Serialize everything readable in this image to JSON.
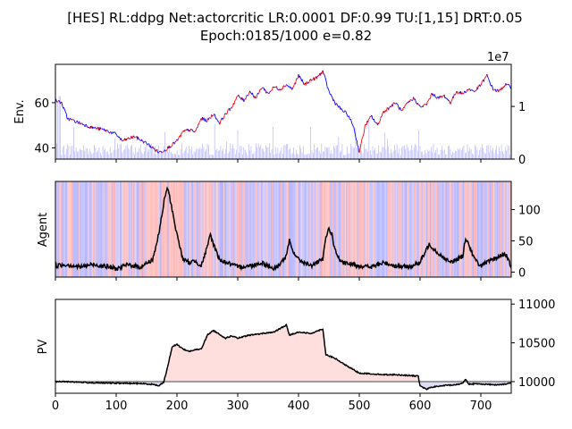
{
  "figure": {
    "title_line1": "[HES] RL:ddpg Net:actorcritic LR:0.0001 DF:0.99 TU:[1,15] DRT:0.05",
    "title_line2": "Epoch:0185/1000 e=0.82"
  },
  "colors": {
    "price_up": "#ff0000",
    "price_down": "#0000ff",
    "volume": "#aaaaff",
    "buy_band": "#ffb4b4",
    "sell_band": "#b4b4ff",
    "agent_line": "#000000",
    "pv_line": "#000000",
    "pv_gain_fill": "#ffdede",
    "pv_loss_fill": "#dedef5",
    "baseline": "#808080"
  },
  "chart_data": [
    {
      "type": "line",
      "panel": "env",
      "ylabel": "Env.",
      "ylim": [
        35,
        77
      ],
      "yticks": [
        40,
        60
      ],
      "y2lim": [
        0,
        18000000
      ],
      "y2ticks": [
        0,
        1
      ],
      "y2_offset_label": "1e7",
      "xlim": [
        0,
        750
      ],
      "price_keypoints": [
        [
          0,
          61
        ],
        [
          10,
          60
        ],
        [
          20,
          53
        ],
        [
          40,
          51
        ],
        [
          60,
          49
        ],
        [
          80,
          48
        ],
        [
          100,
          46
        ],
        [
          110,
          43
        ],
        [
          130,
          45
        ],
        [
          150,
          42
        ],
        [
          160,
          40
        ],
        [
          170,
          38
        ],
        [
          180,
          39
        ],
        [
          200,
          43
        ],
        [
          210,
          47
        ],
        [
          220,
          48
        ],
        [
          230,
          47
        ],
        [
          240,
          53
        ],
        [
          250,
          52
        ],
        [
          260,
          55
        ],
        [
          270,
          51
        ],
        [
          280,
          55
        ],
        [
          290,
          58
        ],
        [
          300,
          63
        ],
        [
          310,
          61
        ],
        [
          320,
          65
        ],
        [
          330,
          62
        ],
        [
          340,
          67
        ],
        [
          350,
          64
        ],
        [
          360,
          67
        ],
        [
          370,
          66
        ],
        [
          380,
          68
        ],
        [
          390,
          66
        ],
        [
          400,
          72
        ],
        [
          410,
          68
        ],
        [
          420,
          70
        ],
        [
          430,
          71
        ],
        [
          440,
          74
        ],
        [
          450,
          65
        ],
        [
          460,
          60
        ],
        [
          470,
          57
        ],
        [
          480,
          55
        ],
        [
          490,
          50
        ],
        [
          500,
          38
        ],
        [
          510,
          50
        ],
        [
          520,
          54
        ],
        [
          530,
          50
        ],
        [
          540,
          56
        ],
        [
          550,
          58
        ],
        [
          560,
          60
        ],
        [
          570,
          56
        ],
        [
          580,
          60
        ],
        [
          590,
          62
        ],
        [
          600,
          58
        ],
        [
          610,
          59
        ],
        [
          620,
          64
        ],
        [
          630,
          62
        ],
        [
          640,
          63
        ],
        [
          650,
          60
        ],
        [
          660,
          65
        ],
        [
          670,
          64
        ],
        [
          680,
          66
        ],
        [
          690,
          65
        ],
        [
          700,
          68
        ],
        [
          710,
          72
        ],
        [
          720,
          66
        ],
        [
          730,
          65
        ],
        [
          740,
          68
        ],
        [
          750,
          67
        ]
      ],
      "volume_level": 2500000
    },
    {
      "type": "line",
      "panel": "agent",
      "ylabel": "Agent",
      "ylim": [
        -8,
        145
      ],
      "y2ticks": [
        0,
        50,
        100
      ],
      "xlim": [
        0,
        750
      ],
      "agent_keypoints": [
        [
          0,
          10
        ],
        [
          20,
          12
        ],
        [
          40,
          8
        ],
        [
          60,
          12
        ],
        [
          80,
          10
        ],
        [
          100,
          5
        ],
        [
          120,
          12
        ],
        [
          140,
          8
        ],
        [
          160,
          20
        ],
        [
          170,
          60
        ],
        [
          180,
          120
        ],
        [
          185,
          135
        ],
        [
          190,
          110
        ],
        [
          200,
          60
        ],
        [
          210,
          20
        ],
        [
          220,
          15
        ],
        [
          230,
          18
        ],
        [
          240,
          10
        ],
        [
          250,
          40
        ],
        [
          255,
          60
        ],
        [
          260,
          45
        ],
        [
          270,
          20
        ],
        [
          290,
          12
        ],
        [
          300,
          8
        ],
        [
          320,
          10
        ],
        [
          340,
          15
        ],
        [
          360,
          5
        ],
        [
          370,
          14
        ],
        [
          380,
          25
        ],
        [
          385,
          50
        ],
        [
          390,
          35
        ],
        [
          400,
          20
        ],
        [
          420,
          10
        ],
        [
          440,
          20
        ],
        [
          445,
          55
        ],
        [
          450,
          70
        ],
        [
          455,
          60
        ],
        [
          460,
          35
        ],
        [
          470,
          15
        ],
        [
          490,
          12
        ],
        [
          500,
          10
        ],
        [
          520,
          8
        ],
        [
          540,
          15
        ],
        [
          560,
          10
        ],
        [
          580,
          8
        ],
        [
          600,
          15
        ],
        [
          610,
          35
        ],
        [
          615,
          45
        ],
        [
          620,
          40
        ],
        [
          630,
          30
        ],
        [
          650,
          15
        ],
        [
          670,
          25
        ],
        [
          675,
          55
        ],
        [
          680,
          45
        ],
        [
          690,
          20
        ],
        [
          700,
          10
        ],
        [
          720,
          20
        ],
        [
          730,
          25
        ],
        [
          740,
          30
        ],
        [
          750,
          8
        ]
      ]
    },
    {
      "type": "area",
      "panel": "pv",
      "ylabel": "PV",
      "baseline": 10000,
      "ylim": [
        9920,
        10110
      ],
      "y2ticks": [
        10000,
        10500,
        11000
      ],
      "xlim": [
        0,
        750
      ],
      "xticks": [
        0,
        100,
        200,
        300,
        400,
        500,
        600,
        700
      ],
      "pv_keypoints": [
        [
          0,
          10000
        ],
        [
          20,
          10000
        ],
        [
          40,
          9992
        ],
        [
          60,
          9985
        ],
        [
          80,
          9982
        ],
        [
          100,
          9980
        ],
        [
          120,
          9978
        ],
        [
          140,
          9975
        ],
        [
          160,
          9965
        ],
        [
          170,
          9948
        ],
        [
          178,
          9990
        ],
        [
          185,
          10200
        ],
        [
          192,
          10450
        ],
        [
          200,
          10480
        ],
        [
          210,
          10420
        ],
        [
          220,
          10390
        ],
        [
          230,
          10410
        ],
        [
          240,
          10420
        ],
        [
          250,
          10600
        ],
        [
          260,
          10660
        ],
        [
          270,
          10610
        ],
        [
          280,
          10560
        ],
        [
          290,
          10590
        ],
        [
          300,
          10560
        ],
        [
          320,
          10600
        ],
        [
          340,
          10620
        ],
        [
          360,
          10640
        ],
        [
          380,
          10730
        ],
        [
          385,
          10600
        ],
        [
          400,
          10640
        ],
        [
          420,
          10620
        ],
        [
          440,
          10680
        ],
        [
          445,
          10350
        ],
        [
          460,
          10300
        ],
        [
          480,
          10200
        ],
        [
          500,
          10110
        ],
        [
          520,
          10100
        ],
        [
          540,
          10090
        ],
        [
          560,
          10090
        ],
        [
          580,
          10080
        ],
        [
          597,
          10070
        ],
        [
          600,
          9950
        ],
        [
          610,
          9900
        ],
        [
          620,
          9930
        ],
        [
          640,
          9950
        ],
        [
          660,
          9960
        ],
        [
          670,
          9980
        ],
        [
          675,
          10030
        ],
        [
          680,
          9970
        ],
        [
          700,
          9970
        ],
        [
          720,
          9960
        ],
        [
          740,
          9965
        ],
        [
          750,
          9985
        ]
      ]
    }
  ]
}
